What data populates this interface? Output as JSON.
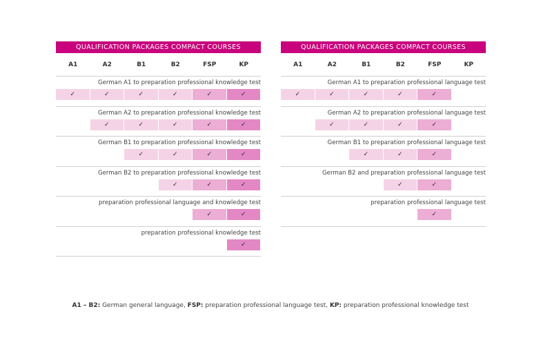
{
  "colors": {
    "title_bar": "#c8037d",
    "cell_language": "#f5d3e6",
    "cell_fsp": "#ecaed4",
    "cell_kp": "#e388c4",
    "divider": "#d0d0d0"
  },
  "columns": [
    "A1",
    "A2",
    "B1",
    "B2",
    "FSP",
    "KP"
  ],
  "check_icon": "✓",
  "left_table": {
    "title": "QUALIFICATION PACKAGES COMPACT COURSES",
    "rows": [
      {
        "label": "German A1 to preparation professional knowledge test",
        "checks": [
          true,
          true,
          true,
          true,
          true,
          true
        ]
      },
      {
        "label": "German A2 to preparation professional knowledge test",
        "checks": [
          false,
          true,
          true,
          true,
          true,
          true
        ]
      },
      {
        "label": "German B1 to preparation professional knowledge test",
        "checks": [
          false,
          false,
          true,
          true,
          true,
          true
        ]
      },
      {
        "label": "German B2 to preparation professional knowledge test",
        "checks": [
          false,
          false,
          false,
          true,
          true,
          true
        ]
      },
      {
        "label": "preparation professional language and knowledge test",
        "checks": [
          false,
          false,
          false,
          false,
          true,
          true
        ]
      },
      {
        "label": "preparation professional knowledge test",
        "checks": [
          false,
          false,
          false,
          false,
          false,
          true
        ]
      }
    ]
  },
  "right_table": {
    "title": "QUALIFICATION PACKAGES COMPACT COURSES",
    "rows": [
      {
        "label": "German A1 to preparation professional language test",
        "checks": [
          true,
          true,
          true,
          true,
          true,
          false
        ]
      },
      {
        "label": "German A2 to preparation professional language test",
        "checks": [
          false,
          true,
          true,
          true,
          true,
          false
        ]
      },
      {
        "label": "German B1 to preparation professional language test",
        "checks": [
          false,
          false,
          true,
          true,
          true,
          false
        ]
      },
      {
        "label": "German B2 and preparation professional language test",
        "checks": [
          false,
          false,
          false,
          true,
          true,
          false
        ]
      },
      {
        "label": "preparation professional language test",
        "checks": [
          false,
          false,
          false,
          false,
          true,
          false
        ]
      }
    ]
  },
  "footnote": {
    "parts": [
      {
        "bold": "A1 – B2:",
        "text": " German general language, "
      },
      {
        "bold": "FSP:",
        "text": " preparation professional language test, "
      },
      {
        "bold": "KP:",
        "text": " preparation professional knowledge test"
      }
    ]
  }
}
